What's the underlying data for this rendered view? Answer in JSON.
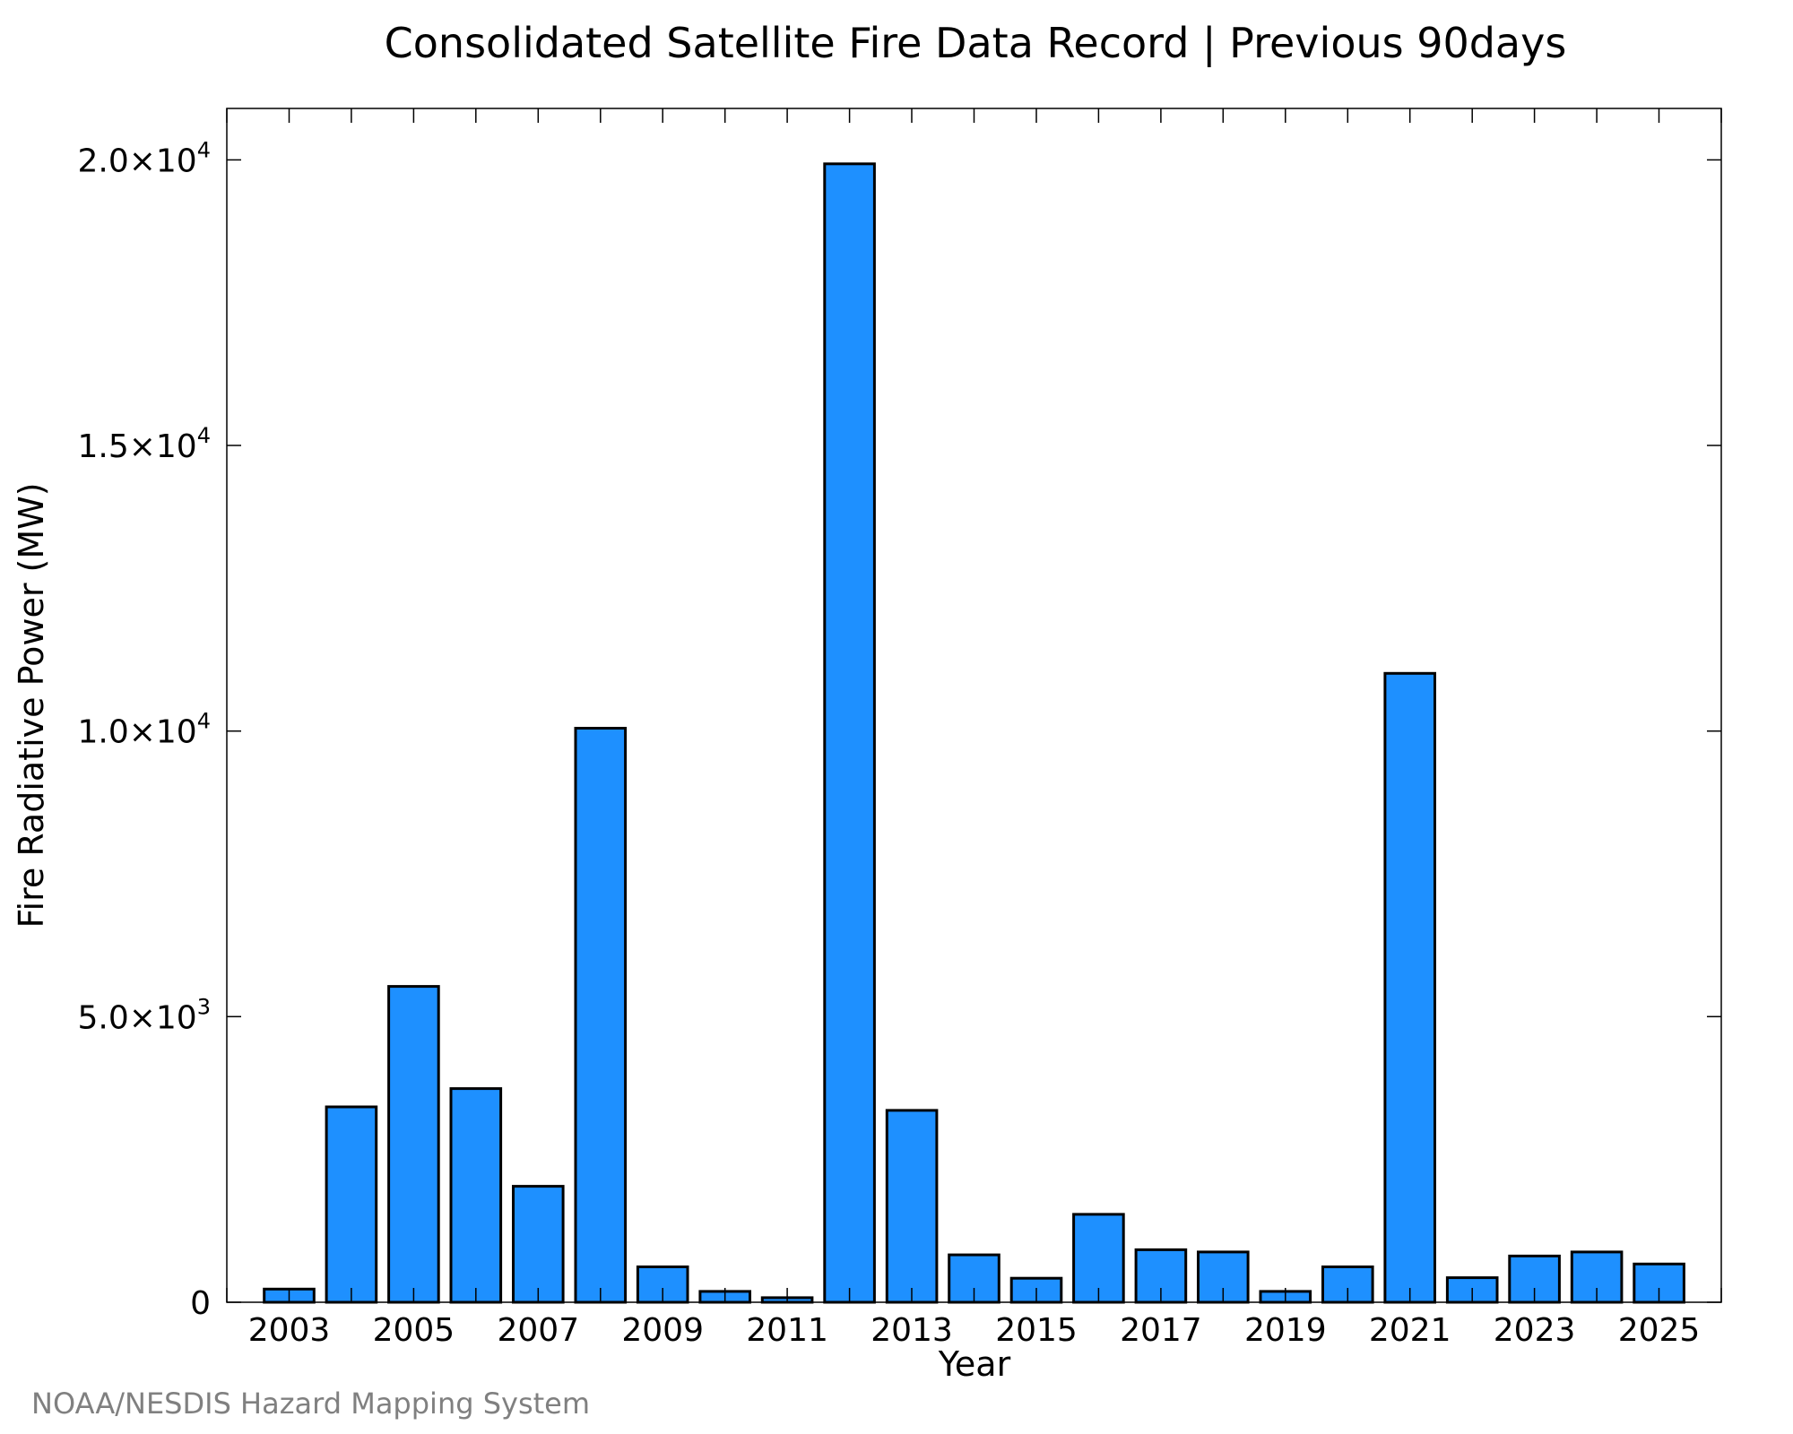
{
  "chart_data": {
    "type": "bar",
    "title": "Consolidated Satellite Fire Data Record | Previous 90days",
    "xlabel": "Year",
    "ylabel": "Fire Radiative Power (MW)",
    "x": [
      2003,
      2004,
      2005,
      2006,
      2007,
      2008,
      2009,
      2010,
      2011,
      2012,
      2013,
      2014,
      2015,
      2016,
      2017,
      2018,
      2019,
      2020,
      2021,
      2022,
      2023,
      2024,
      2025
    ],
    "values": [
      230,
      3420,
      5530,
      3740,
      2030,
      10050,
      620,
      190,
      80,
      19930,
      3360,
      830,
      420,
      1540,
      920,
      880,
      190,
      620,
      11010,
      430,
      810,
      880,
      670
    ],
    "xlim": [
      2002.0,
      2026.0
    ],
    "ylim": [
      0,
      20900
    ],
    "x_ticks": [
      "2003",
      "2005",
      "2007",
      "2009",
      "2011",
      "2013",
      "2015",
      "2017",
      "2019",
      "2021",
      "2023",
      "2025"
    ],
    "y_ticks": [
      {
        "value": 0,
        "mantissa": "0",
        "exp": ""
      },
      {
        "value": 5000,
        "mantissa": "5.0×10",
        "exp": "3"
      },
      {
        "value": 10000,
        "mantissa": "1.0×10",
        "exp": "4"
      },
      {
        "value": 15000,
        "mantissa": "1.5×10",
        "exp": "4"
      },
      {
        "value": 20000,
        "mantissa": "2.0×10",
        "exp": "4"
      }
    ],
    "bar_color": "#1E90FF",
    "bar_edge_color": "#000000",
    "grid": false,
    "legend": "none"
  },
  "credit": "NOAA/NESDIS Hazard Mapping System"
}
